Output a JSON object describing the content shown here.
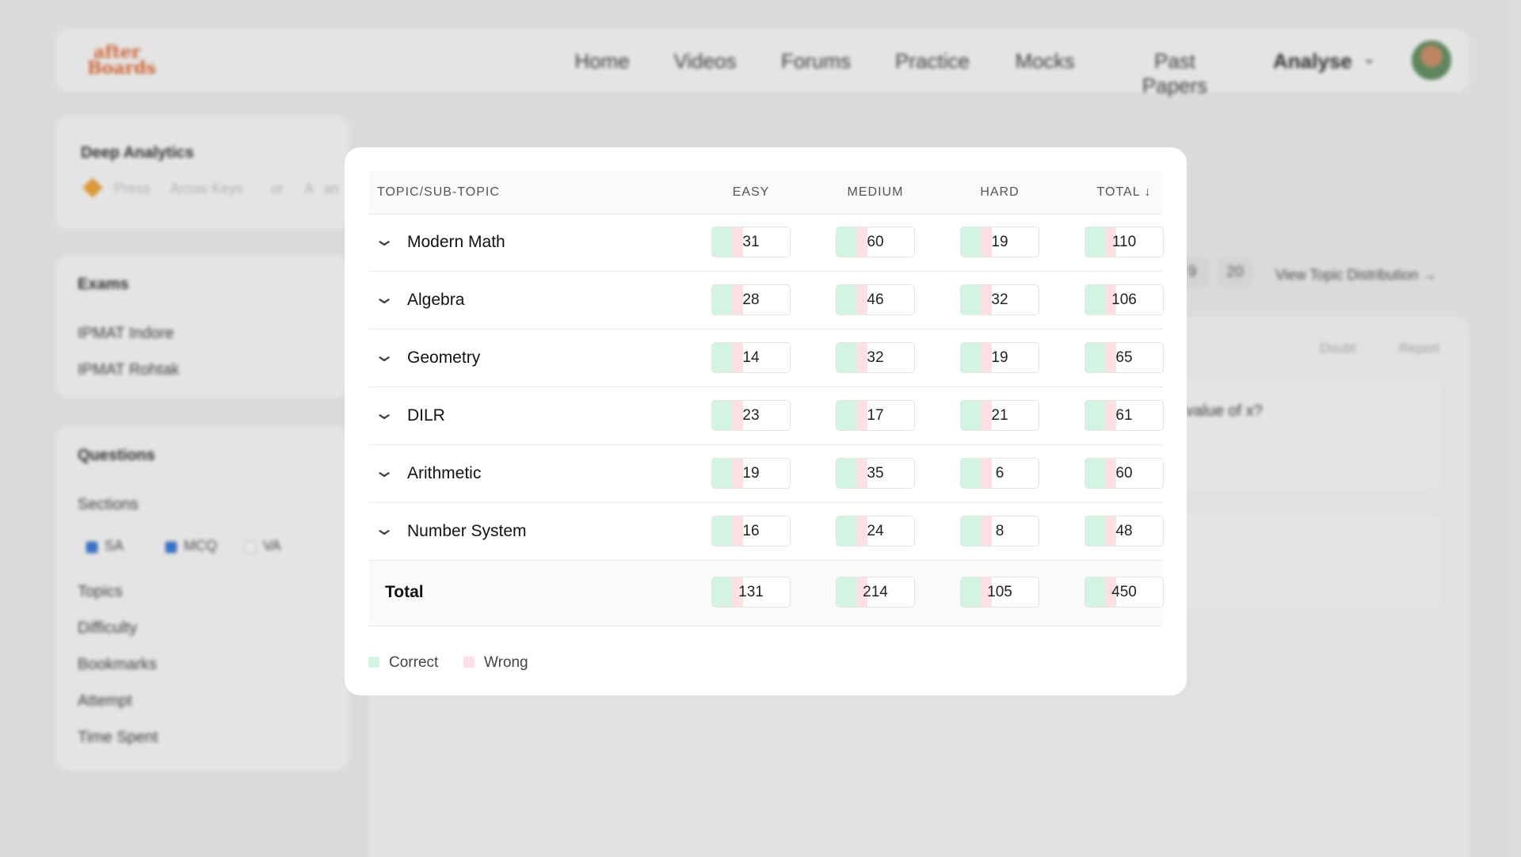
{
  "nav": {
    "logo_top": "after",
    "logo_bottom": "Boards",
    "items": [
      "Home",
      "Videos",
      "Forums",
      "Practice",
      "Mocks",
      "Past Papers"
    ],
    "menu": "Analyse"
  },
  "sidebar": {
    "deep_analytics": "Deep Analytics",
    "hint": [
      "Press",
      "Arrow Keys",
      "or",
      "A",
      "an"
    ],
    "exams_title": "Exams",
    "exams": [
      "IPMAT Indore",
      "IPMAT Rohtak"
    ],
    "questions_title": "Questions",
    "sections_title": "Sections",
    "sections": [
      {
        "label": "SA",
        "checked": true
      },
      {
        "label": "MCQ",
        "checked": true
      },
      {
        "label": "VA",
        "checked": false
      }
    ],
    "filters": [
      "Topics",
      "Difficulty",
      "Bookmarks",
      "Attempt",
      "Time Spent"
    ]
  },
  "content": {
    "pages": [
      9,
      20
    ],
    "view_topic": "View Topic Distribution →",
    "doubt": "Doubt",
    "report": "Report",
    "question": "value of x?"
  },
  "table": {
    "headers": [
      "TOPIC/SUB-TOPIC",
      "EASY",
      "MEDIUM",
      "HARD",
      "TOTAL ↓"
    ],
    "rows": [
      [
        "Modern Math",
        31,
        60,
        19,
        110
      ],
      [
        "Algebra",
        28,
        46,
        32,
        106
      ],
      [
        "Geometry",
        14,
        32,
        19,
        65
      ],
      [
        "DILR",
        23,
        17,
        21,
        61
      ],
      [
        "Arithmetic",
        19,
        35,
        6,
        60
      ],
      [
        "Number System",
        16,
        24,
        8,
        48
      ]
    ],
    "total_row": [
      "Total",
      131,
      214,
      105,
      450
    ]
  },
  "legend": [
    {
      "label": "Correct",
      "color": "#d3f4e2"
    },
    {
      "label": "Wrong",
      "color": "#fde0e3"
    }
  ]
}
